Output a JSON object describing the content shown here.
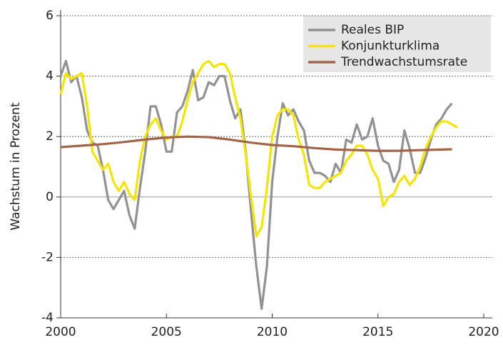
{
  "chart_data": {
    "type": "line",
    "ylabel": "Wachstum in Prozent",
    "xlim": [
      2000,
      2020
    ],
    "xticks": [
      2000,
      2005,
      2010,
      2015,
      2020
    ],
    "ylim": [
      -4,
      6
    ],
    "yticks": [
      -4,
      -2,
      0,
      2,
      4,
      6
    ],
    "grid": true,
    "legend": "upper right",
    "series": [
      {
        "name": "Reales BIP",
        "color": "#929292",
        "x": [
          2000,
          2000.25,
          2000.5,
          2000.75,
          2001,
          2001.25,
          2001.5,
          2001.75,
          2002,
          2002.25,
          2002.5,
          2002.75,
          2003,
          2003.25,
          2003.5,
          2003.75,
          2004,
          2004.25,
          2004.5,
          2004.75,
          2005,
          2005.25,
          2005.5,
          2005.75,
          2006,
          2006.25,
          2006.5,
          2006.75,
          2007,
          2007.25,
          2007.5,
          2007.75,
          2008,
          2008.25,
          2008.5,
          2008.75,
          2009,
          2009.25,
          2009.5,
          2009.75,
          2010,
          2010.25,
          2010.5,
          2010.75,
          2011,
          2011.25,
          2011.5,
          2011.75,
          2012,
          2012.25,
          2012.5,
          2012.75,
          2013,
          2013.25,
          2013.5,
          2013.75,
          2014,
          2014.25,
          2014.5,
          2014.75,
          2015,
          2015.25,
          2015.5,
          2015.75,
          2016,
          2016.25,
          2016.5,
          2016.75,
          2017,
          2017.25,
          2017.5,
          2017.75,
          2018,
          2018.25,
          2018.5
        ],
        "values": [
          4.0,
          4.5,
          3.8,
          4.0,
          3.3,
          2.2,
          1.8,
          1.7,
          0.9,
          -0.1,
          -0.4,
          -0.1,
          0.2,
          -0.6,
          -1.05,
          0.3,
          1.5,
          3.0,
          3.0,
          2.4,
          1.5,
          1.5,
          2.8,
          3.0,
          3.5,
          4.2,
          3.2,
          3.3,
          3.8,
          3.7,
          4.0,
          4.0,
          3.2,
          2.6,
          2.9,
          1.5,
          -0.5,
          -2.3,
          -3.7,
          -2.3,
          0.5,
          2.0,
          3.1,
          2.7,
          2.9,
          2.5,
          2.2,
          1.2,
          0.8,
          0.8,
          0.7,
          0.5,
          1.1,
          0.8,
          1.9,
          1.8,
          2.4,
          1.9,
          2.0,
          2.6,
          1.7,
          1.2,
          1.1,
          0.5,
          0.9,
          2.2,
          1.6,
          0.8,
          0.8,
          1.3,
          1.9,
          2.4,
          2.6,
          2.9,
          3.1
        ]
      },
      {
        "name": "Konjunkturklima",
        "color": "#f5e500",
        "x": [
          2000,
          2000.25,
          2000.5,
          2000.75,
          2001,
          2001.25,
          2001.5,
          2001.75,
          2002,
          2002.25,
          2002.5,
          2002.75,
          2003,
          2003.25,
          2003.5,
          2003.75,
          2004,
          2004.25,
          2004.5,
          2004.75,
          2005,
          2005.25,
          2005.5,
          2005.75,
          2006,
          2006.25,
          2006.5,
          2006.75,
          2007,
          2007.25,
          2007.5,
          2007.75,
          2008,
          2008.25,
          2008.5,
          2008.75,
          2009,
          2009.25,
          2009.5,
          2009.75,
          2010,
          2010.25,
          2010.5,
          2010.75,
          2011,
          2011.25,
          2011.5,
          2011.75,
          2012,
          2012.25,
          2012.5,
          2012.75,
          2013,
          2013.25,
          2013.5,
          2013.75,
          2014,
          2014.25,
          2014.5,
          2014.75,
          2015,
          2015.25,
          2015.5,
          2015.75,
          2016,
          2016.25,
          2016.5,
          2016.75,
          2017,
          2017.25,
          2017.5,
          2017.75,
          2018,
          2018.25,
          2018.5,
          2018.75
        ],
        "values": [
          3.4,
          4.1,
          3.9,
          4.0,
          4.1,
          3.0,
          1.5,
          1.2,
          0.9,
          1.1,
          0.5,
          0.2,
          0.5,
          0.1,
          -0.1,
          1.2,
          2.0,
          2.4,
          2.6,
          2.2,
          1.9,
          2.0,
          2.0,
          2.5,
          3.2,
          3.8,
          4.1,
          4.4,
          4.5,
          4.3,
          4.4,
          4.4,
          4.1,
          3.3,
          2.6,
          1.4,
          0.0,
          -1.3,
          -1.0,
          0.3,
          2.0,
          2.7,
          2.9,
          2.9,
          2.7,
          1.9,
          1.4,
          0.4,
          0.3,
          0.3,
          0.5,
          0.6,
          0.7,
          0.8,
          1.2,
          1.4,
          1.7,
          1.7,
          1.4,
          0.9,
          0.6,
          -0.3,
          0.0,
          0.1,
          0.5,
          0.7,
          0.4,
          0.6,
          1.0,
          1.6,
          2.0,
          2.3,
          2.5,
          2.5,
          2.4,
          2.3
        ]
      },
      {
        "name": "Trendwachstumsrate",
        "color": "#a3654a",
        "x": [
          2000,
          2001,
          2002,
          2003,
          2004,
          2005,
          2006,
          2007,
          2008,
          2009,
          2010,
          2011,
          2012,
          2013,
          2014,
          2015,
          2016,
          2017,
          2018,
          2018.5
        ],
        "values": [
          1.65,
          1.7,
          1.75,
          1.82,
          1.9,
          1.97,
          2.0,
          1.98,
          1.9,
          1.8,
          1.72,
          1.68,
          1.62,
          1.57,
          1.55,
          1.53,
          1.53,
          1.55,
          1.57,
          1.58
        ]
      }
    ]
  }
}
